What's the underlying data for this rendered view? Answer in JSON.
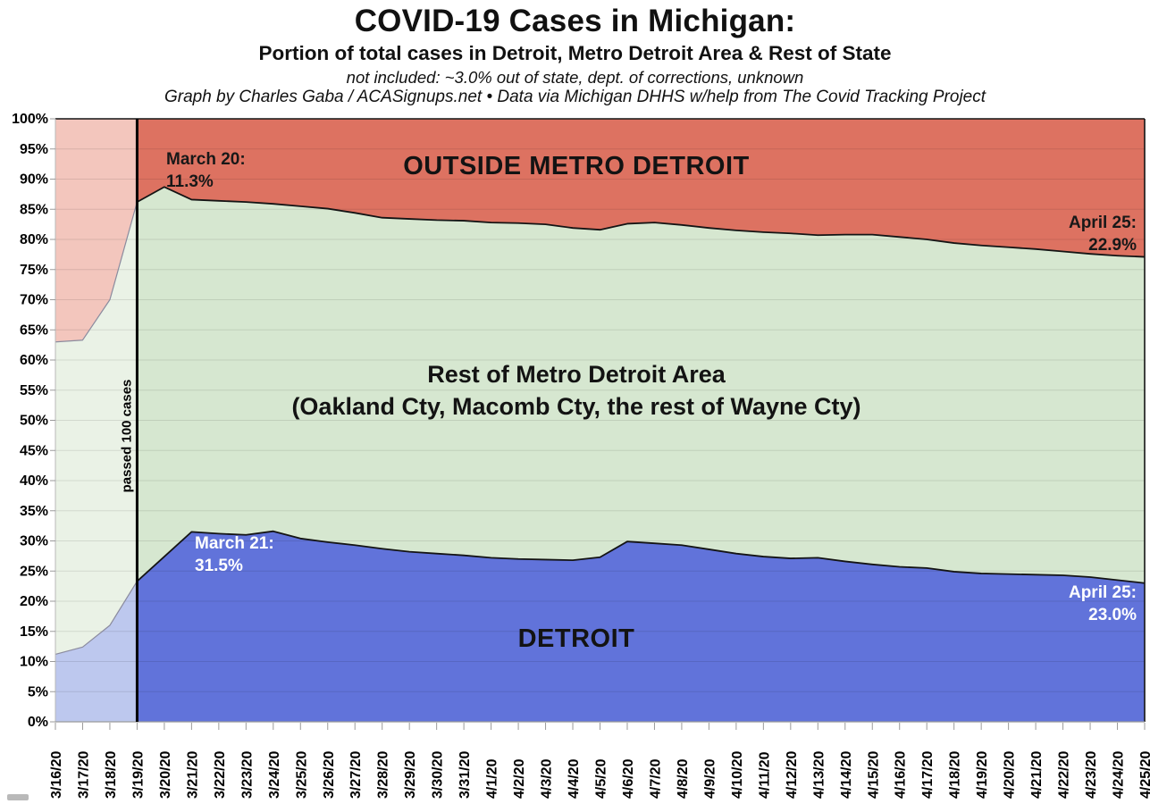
{
  "header": {
    "title": "COVID-19 Cases in Michigan:",
    "subtitle": "Portion of total cases in Detroit, Metro Detroit Area & Rest of State",
    "note": "not included: ~3.0% out of state, dept. of corrections, unknown",
    "credit": "Graph by Charles Gaba / ACASignups.net  •  Data via Michigan DHHS w/help from The Covid Tracking Project"
  },
  "chart_data": {
    "type": "area",
    "stacked": true,
    "grid": true,
    "ylim": [
      0,
      100
    ],
    "ytick_step": 5,
    "ytick_suffix": "%",
    "x": [
      "3/16/20",
      "3/17/20",
      "3/18/20",
      "3/19/20",
      "3/20/20",
      "3/21/20",
      "3/22/20",
      "3/23/20",
      "3/24/20",
      "3/25/20",
      "3/26/20",
      "3/27/20",
      "3/28/20",
      "3/29/20",
      "3/30/20",
      "3/31/20",
      "4/1/20",
      "4/2/20",
      "4/3/20",
      "4/4/20",
      "4/5/20",
      "4/6/20",
      "4/7/20",
      "4/8/20",
      "4/9/20",
      "4/10/20",
      "4/11/20",
      "4/12/20",
      "4/13/20",
      "4/14/20",
      "4/15/20",
      "4/16/20",
      "4/17/20",
      "4/18/20",
      "4/19/20",
      "4/20/20",
      "4/21/20",
      "4/22/20",
      "4/23/20",
      "4/24/20",
      "4/25/20"
    ],
    "highlight": {
      "x": "3/19/20",
      "label": "passed 100 cases"
    },
    "series": [
      {
        "name": "Detroit",
        "area_label": "DETROIT",
        "color": "#6173da",
        "color_before": "#bdc8ee",
        "values": [
          11.2,
          12.4,
          16.0,
          23.3,
          27.4,
          31.5,
          31.2,
          31.0,
          31.6,
          30.4,
          29.8,
          29.3,
          28.7,
          28.2,
          27.9,
          27.6,
          27.2,
          27.0,
          26.9,
          26.8,
          27.3,
          29.9,
          29.6,
          29.3,
          28.6,
          27.9,
          27.4,
          27.1,
          27.2,
          26.6,
          26.1,
          25.7,
          25.5,
          24.9,
          24.6,
          24.5,
          24.4,
          24.3,
          24.0,
          23.5,
          23.0
        ]
      },
      {
        "name": "Rest of Metro Detroit Area",
        "area_label": "Rest of Metro Detroit Area",
        "area_sublabel": "(Oakland Cty, Macomb Cty, the rest of Wayne Cty)",
        "color": "#d6e7d0",
        "color_before": "#eaf2e6",
        "values": [
          51.8,
          50.9,
          54.0,
          62.9,
          61.3,
          55.1,
          55.2,
          55.2,
          54.3,
          55.1,
          55.3,
          55.1,
          54.9,
          55.2,
          55.3,
          55.5,
          55.6,
          55.7,
          55.6,
          55.1,
          54.3,
          52.7,
          53.2,
          53.1,
          53.3,
          53.6,
          53.8,
          53.9,
          53.5,
          54.2,
          54.7,
          54.7,
          54.5,
          54.5,
          54.4,
          54.2,
          54.0,
          53.7,
          53.6,
          53.8,
          54.1
        ]
      },
      {
        "name": "Outside Metro Detroit",
        "area_label": "OUTSIDE METRO DETROIT",
        "color": "#dd7261",
        "color_before": "#f3c6bd",
        "values": [
          37.0,
          36.7,
          30.0,
          13.8,
          11.3,
          13.4,
          13.6,
          13.8,
          14.1,
          14.5,
          14.9,
          15.6,
          16.4,
          16.6,
          16.8,
          16.9,
          17.2,
          17.3,
          17.5,
          18.1,
          18.4,
          17.4,
          17.2,
          17.6,
          18.1,
          18.5,
          18.8,
          19.0,
          19.3,
          19.2,
          19.2,
          19.6,
          20.0,
          20.6,
          21.0,
          21.3,
          21.6,
          22.0,
          22.4,
          22.7,
          22.9
        ]
      }
    ],
    "annotations": [
      {
        "series": "Outside Metro Detroit",
        "date": "3/20/20",
        "value": 11.3,
        "text": "March 20:\n11.3%"
      },
      {
        "series": "Outside Metro Detroit",
        "date": "4/25/20",
        "value": 22.9,
        "text": "April 25:\n22.9%"
      },
      {
        "series": "Detroit",
        "date": "3/21/20",
        "value": 31.5,
        "text": "March 21:\n31.5%"
      },
      {
        "series": "Detroit",
        "date": "4/25/20",
        "value": 23.0,
        "text": "April 25:\n23.0%"
      }
    ]
  }
}
